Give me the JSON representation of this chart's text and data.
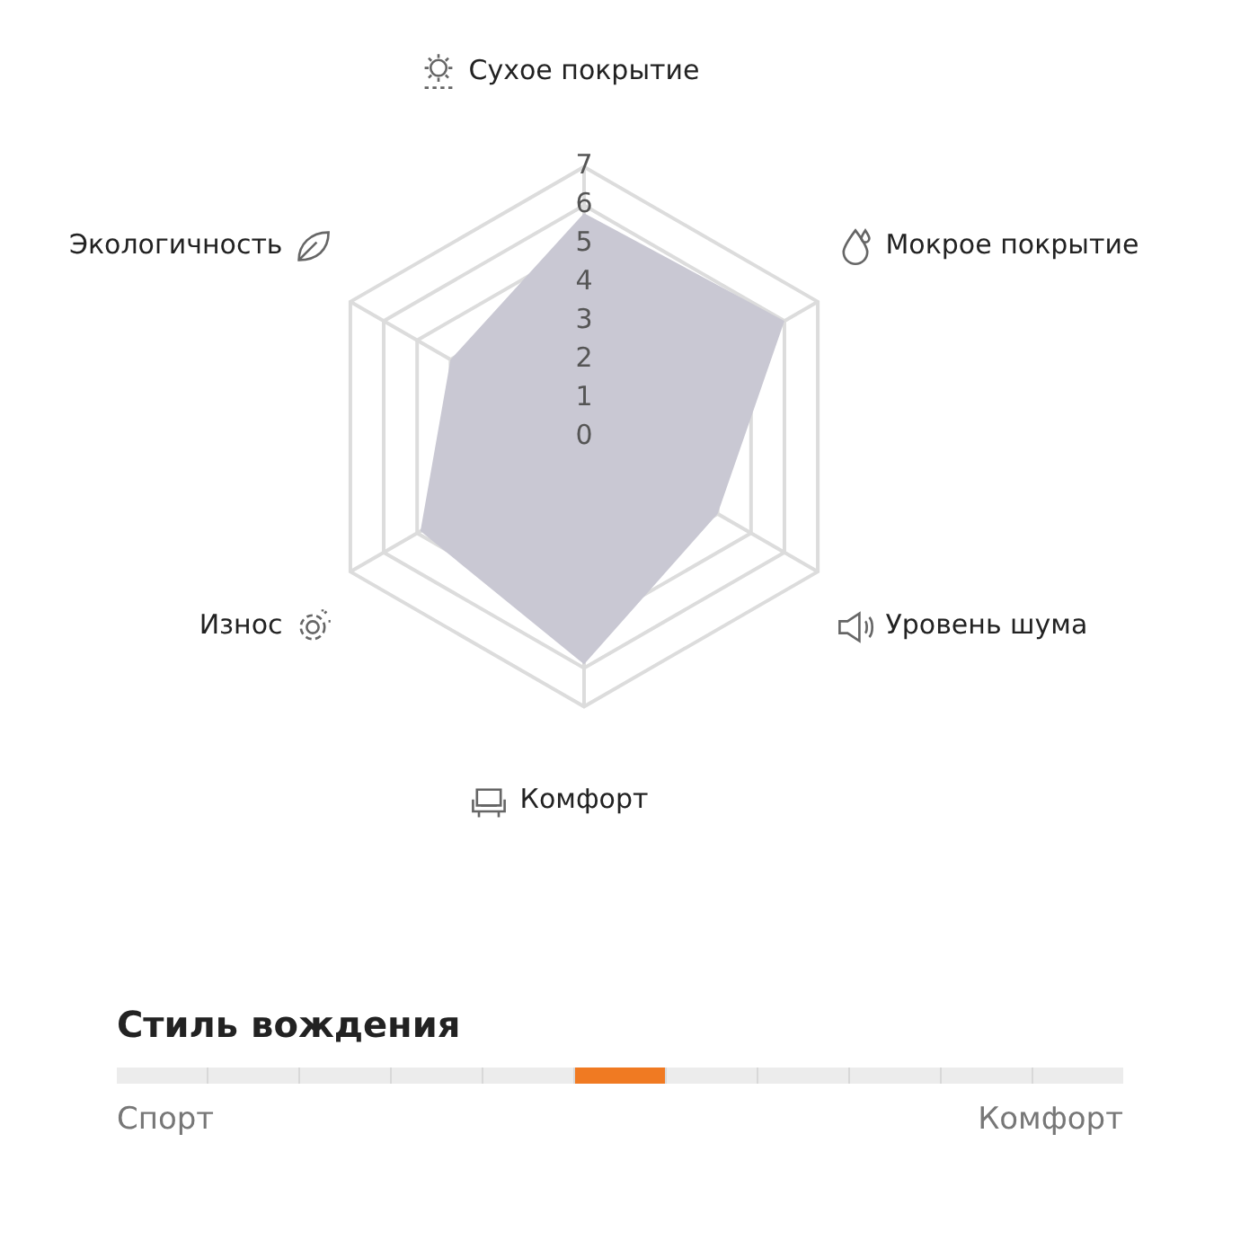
{
  "chart_data": [
    {
      "type": "radar",
      "categories": [
        "Сухое покрытие",
        "Мокрое покрытие",
        "Уровень шума",
        "Комфорт",
        "Износ",
        "Экологичность"
      ],
      "series": [
        {
          "color": "#c9c8d3",
          "values": [
            5.8,
            6.0,
            4.0,
            5.9,
            4.9,
            4.0
          ]
        }
      ],
      "ylim": [
        0,
        7
      ],
      "yticks": [
        0,
        1,
        2,
        3,
        4,
        5,
        6,
        7
      ],
      "grid": true,
      "legend": false,
      "marker": "none"
    },
    {
      "type": "other",
      "title": "Стиль вождения",
      "annotations": [
        "Спорт",
        "Комфорт"
      ]
    }
  ]
}
